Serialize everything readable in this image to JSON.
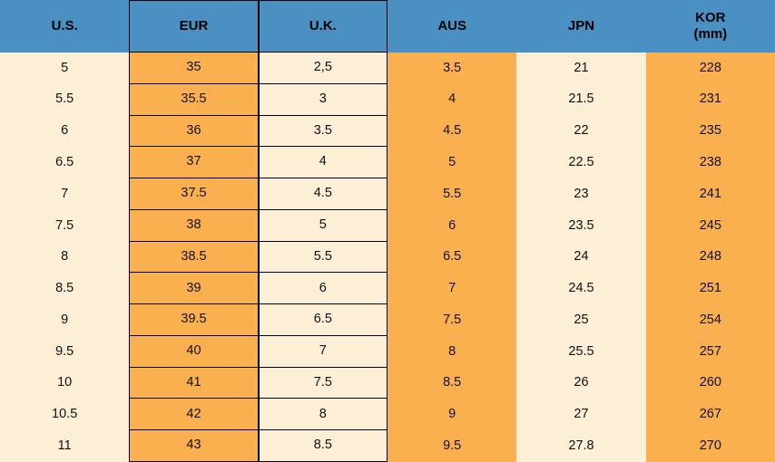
{
  "chart_data": {
    "type": "table",
    "columns": [
      {
        "key": "us",
        "label": "U.S.",
        "bg": "cream",
        "bordered": false
      },
      {
        "key": "eur",
        "label": "EUR",
        "bg": "orange",
        "bordered": true
      },
      {
        "key": "uk",
        "label": "U.K.",
        "bg": "cream",
        "bordered": true
      },
      {
        "key": "aus",
        "label": "AUS",
        "bg": "orange",
        "bordered": false
      },
      {
        "key": "jpn",
        "label": "JPN",
        "bg": "cream",
        "bordered": false
      },
      {
        "key": "kor",
        "label": "KOR",
        "sublabel": "(mm)",
        "bg": "orange",
        "bordered": false
      }
    ],
    "rows": [
      [
        "5",
        "35",
        "2,5",
        "3.5",
        "21",
        "228"
      ],
      [
        "5.5",
        "35.5",
        "3",
        "4",
        "21.5",
        "231"
      ],
      [
        "6",
        "36",
        "3.5",
        "4.5",
        "22",
        "235"
      ],
      [
        "6.5",
        "37",
        "4",
        "5",
        "22.5",
        "238"
      ],
      [
        "7",
        "37.5",
        "4.5",
        "5.5",
        "23",
        "241"
      ],
      [
        "7.5",
        "38",
        "5",
        "6",
        "23.5",
        "245"
      ],
      [
        "8",
        "38.5",
        "5.5",
        "6.5",
        "24",
        "248"
      ],
      [
        "8.5",
        "39",
        "6",
        "7",
        "24.5",
        "251"
      ],
      [
        "9",
        "39.5",
        "6.5",
        "7.5",
        "25",
        "254"
      ],
      [
        "9.5",
        "40",
        "7",
        "8",
        "25.5",
        "257"
      ],
      [
        "10",
        "41",
        "7.5",
        "8.5",
        "26",
        "260"
      ],
      [
        "10.5",
        "42",
        "8",
        "9",
        "27",
        "267"
      ],
      [
        "11",
        "43",
        "8.5",
        "9.5",
        "27.8",
        "270"
      ]
    ]
  },
  "colors": {
    "header-bg": "#4a90c2",
    "orange": "#fbb04f",
    "cream": "#fdeed6",
    "border": "#000000",
    "text": "#101010"
  }
}
